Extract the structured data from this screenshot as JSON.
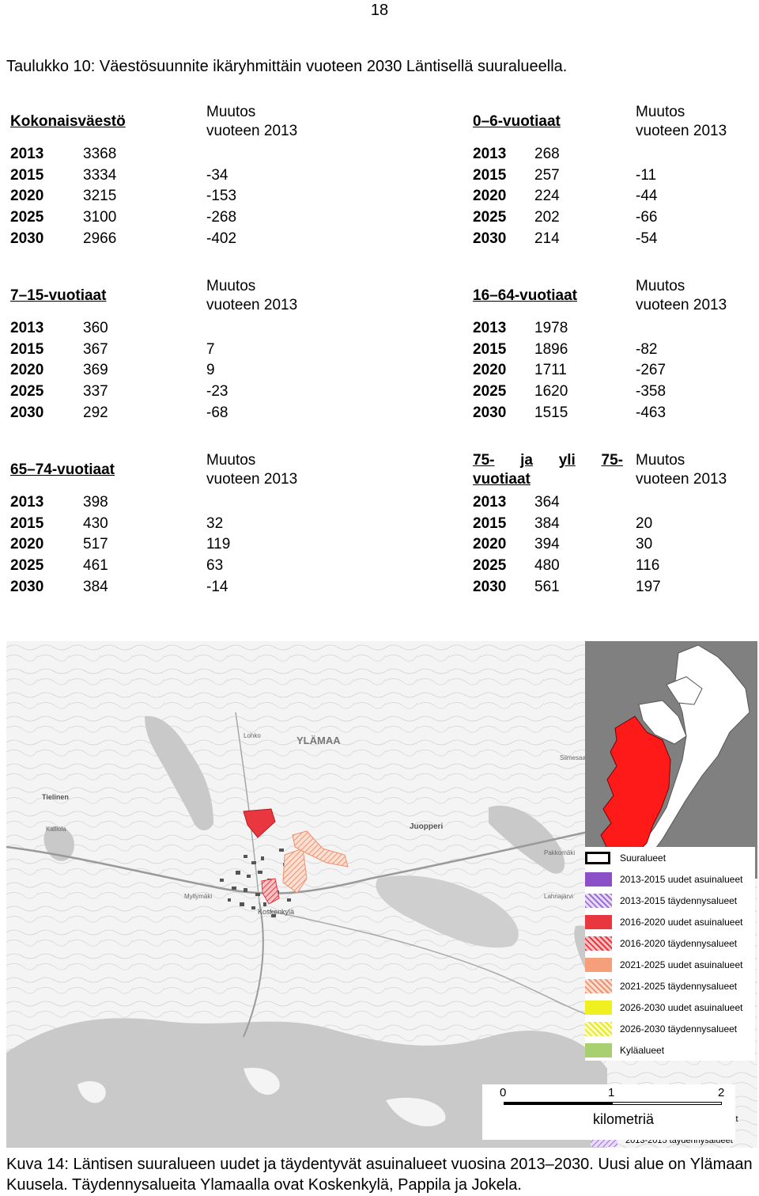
{
  "page_number": "18",
  "table_caption": "Taulukko 10: Väestösuunnite ikäryhmittäin vuoteen 2030 Läntisellä suuralueella.",
  "change_header_1": "Muutos",
  "change_header_2": "vuoteen 2013",
  "groups": [
    {
      "name": "Kokonaisväestö",
      "rows": [
        {
          "year": "2013",
          "value": "3368",
          "change": ""
        },
        {
          "year": "2015",
          "value": "3334",
          "change": "-34"
        },
        {
          "year": "2020",
          "value": "3215",
          "change": "-153"
        },
        {
          "year": "2025",
          "value": "3100",
          "change": "-268"
        },
        {
          "year": "2030",
          "value": "2966",
          "change": "-402"
        }
      ]
    },
    {
      "name": "0–6-vuotiaat",
      "rows": [
        {
          "year": "2013",
          "value": "268",
          "change": ""
        },
        {
          "year": "2015",
          "value": "257",
          "change": "-11"
        },
        {
          "year": "2020",
          "value": "224",
          "change": "-44"
        },
        {
          "year": "2025",
          "value": "202",
          "change": "-66"
        },
        {
          "year": "2030",
          "value": "214",
          "change": "-54"
        }
      ]
    },
    {
      "name": "7–15-vuotiaat",
      "rows": [
        {
          "year": "2013",
          "value": "360",
          "change": ""
        },
        {
          "year": "2015",
          "value": "367",
          "change": "7"
        },
        {
          "year": "2020",
          "value": "369",
          "change": "9"
        },
        {
          "year": "2025",
          "value": "337",
          "change": "-23"
        },
        {
          "year": "2030",
          "value": "292",
          "change": "-68"
        }
      ]
    },
    {
      "name": "16–64-vuotiaat",
      "rows": [
        {
          "year": "2013",
          "value": "1978",
          "change": ""
        },
        {
          "year": "2015",
          "value": "1896",
          "change": "-82"
        },
        {
          "year": "2020",
          "value": "1711",
          "change": "-267"
        },
        {
          "year": "2025",
          "value": "1620",
          "change": "-358"
        },
        {
          "year": "2030",
          "value": "1515",
          "change": "-463"
        }
      ]
    },
    {
      "name": "65–74-vuotiaat",
      "rows": [
        {
          "year": "2013",
          "value": "398",
          "change": ""
        },
        {
          "year": "2015",
          "value": "430",
          "change": "32"
        },
        {
          "year": "2020",
          "value": "517",
          "change": "119"
        },
        {
          "year": "2025",
          "value": "461",
          "change": "63"
        },
        {
          "year": "2030",
          "value": "384",
          "change": "-14"
        }
      ]
    },
    {
      "name_line1_words": [
        "75-",
        "ja",
        "yli",
        "75-"
      ],
      "name_line2": "vuotiaat",
      "rows": [
        {
          "year": "2013",
          "value": "364",
          "change": ""
        },
        {
          "year": "2015",
          "value": "384",
          "change": "20"
        },
        {
          "year": "2020",
          "value": "394",
          "change": "30"
        },
        {
          "year": "2025",
          "value": "480",
          "change": "116"
        },
        {
          "year": "2030",
          "value": "561",
          "change": "197"
        }
      ]
    }
  ],
  "map": {
    "place_labels": [
      "YLÄMAA",
      "Tielinen",
      "Juopperi",
      "Koskenkylä",
      "Lohko",
      "Kalliola",
      "Lahnajärvi",
      "Myllymäki",
      "Pakkomäki",
      "Siimesaari"
    ],
    "legend": [
      {
        "label": "Suuralueet",
        "color": "#ffffff",
        "style": "outline"
      },
      {
        "label": "2013-2015 uudet asuinalueet",
        "color": "#8b4fc8",
        "style": "solid"
      },
      {
        "label": "2013-2015 täydennysalueet",
        "color": "#9b6fd8",
        "style": "hatch"
      },
      {
        "label": "2016-2020 uudet asuinalueet",
        "color": "#e8373f",
        "style": "solid"
      },
      {
        "label": "2016-2020 täydennysalueet",
        "color": "#e8373f",
        "style": "hatch"
      },
      {
        "label": "2021-2025 uudet asuinalueet",
        "color": "#f5a07a",
        "style": "solid"
      },
      {
        "label": "2021-2025 täydennysalueet",
        "color": "#f5a07a",
        "style": "hatch"
      },
      {
        "label": "2026-2030 uudet asuinalueet",
        "color": "#f0f020",
        "style": "solid"
      },
      {
        "label": "2026-2030 täydennysalueet",
        "color": "#f0f020",
        "style": "hatch"
      },
      {
        "label": "Kyläalueet",
        "color": "#a8d070",
        "style": "solid"
      }
    ],
    "scale_ticks": [
      "0",
      "1",
      "2"
    ],
    "scale_unit": "kilometriä"
  },
  "figure_caption": "Kuva 14: Läntisen suuralueen uudet ja täydentyvät asuinalueet vuosina 2013–2030. Uusi alue on Ylämaan Kuusela. Täydennysalueita Ylamaalla ovat Koskenkylä, Pappila ja Jokela."
}
